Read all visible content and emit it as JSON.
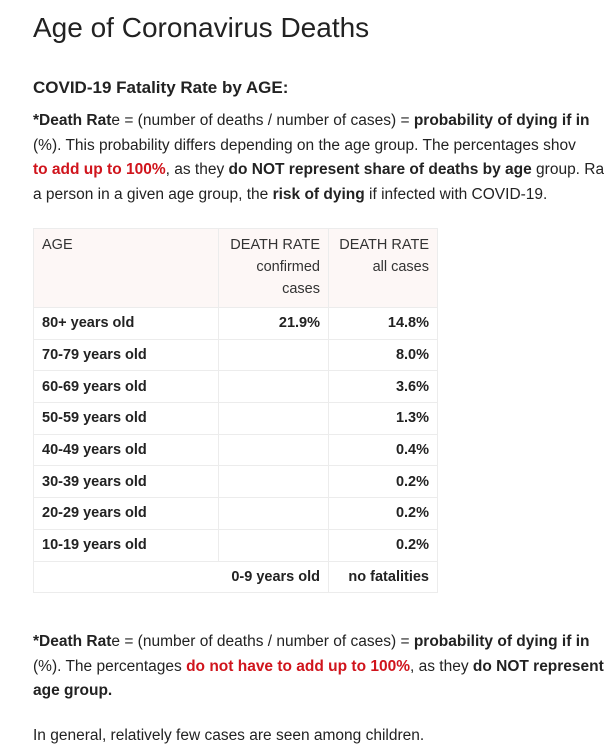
{
  "title": "Age of Coronavirus Deaths",
  "subtitle": "COVID-19 Fatality Rate by AGE:",
  "paragraph1": [
    [
      "*Death Rat",
      "e = (number of deaths / number of cases) = ",
      "probability of dying if in"
    ],
    [
      "(%). This probability differs depending on the age group. The percentages shov"
    ],
    [
      "to add up to 100%",
      ", as they ",
      "do NOT represent share of deaths by age",
      " group. Ra"
    ],
    [
      "a person in a given age group, the ",
      "risk of dying",
      " if infected with COVID-19."
    ]
  ],
  "table": {
    "header": [
      [
        "AGE"
      ],
      [
        "DEATH RATE",
        "confirmed",
        "cases"
      ],
      [
        "DEATH RATE",
        "all cases"
      ]
    ],
    "rows": [
      {
        "age": "80+ years old",
        "confirmed": "21.9%",
        "all": "14.8%"
      },
      {
        "age": "70-79 years old",
        "all": "8.0%"
      },
      {
        "age": "60-69 years old",
        "all": "3.6%"
      },
      {
        "age": "50-59 years old",
        "all": "1.3%"
      },
      {
        "age": "40-49 years old",
        "all": "0.4%"
      },
      {
        "age": "30-39 years old",
        "all": "0.2%"
      },
      {
        "age": "20-29 years old",
        "all": "0.2%"
      },
      {
        "age": "10-19 years old",
        "all": "0.2%"
      },
      {
        "age": "0-9 years old",
        "all": "no fatalities"
      }
    ]
  },
  "paragraph2": [
    [
      "*Death Rat",
      "e = (number of deaths / number of cases) = ",
      "probability of dying if in"
    ],
    [
      "(%). The percentages ",
      "do not have to add up to 100%",
      ", as they ",
      "do NOT represent"
    ],
    [
      "age group."
    ]
  ],
  "paragraph3": "In general, relatively few cases are seen among children."
}
